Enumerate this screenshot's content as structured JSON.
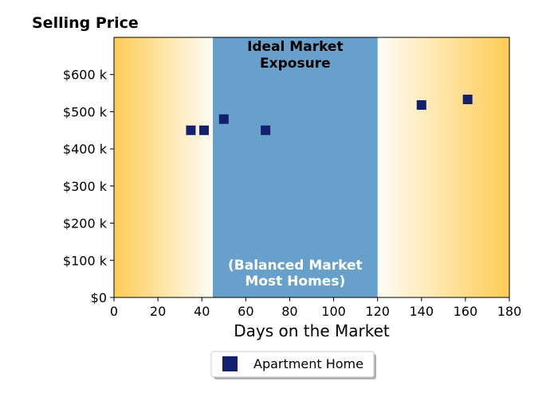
{
  "chart_data": {
    "type": "scatter",
    "title": "Selling Price",
    "xlabel": "Days on the Market",
    "ylabel": "",
    "xlim": [
      0,
      180
    ],
    "ylim": [
      0,
      700000
    ],
    "x_ticks": [
      0,
      20,
      40,
      60,
      80,
      100,
      120,
      140,
      160,
      180
    ],
    "x_tick_labels": [
      "0",
      "20",
      "40",
      "60",
      "80",
      "100",
      "120",
      "140",
      "160",
      "180"
    ],
    "y_ticks": [
      0,
      100000,
      200000,
      300000,
      400000,
      500000,
      600000
    ],
    "y_tick_labels": [
      "$0",
      "$100 k",
      "$200 k",
      "$300 k",
      "$400 k",
      "$500 k",
      "$600 k"
    ],
    "grid": false,
    "legend_position": "bottom-center",
    "background_gradient_color": "#ffcc55",
    "highlight_band": {
      "x_start": 45,
      "x_end": 120,
      "color": "#68a0cc",
      "top_label_line1": "Ideal Market",
      "top_label_line2": "Exposure",
      "bottom_label_line1": "(Balanced Market",
      "bottom_label_line2": "Most Homes)"
    },
    "series": [
      {
        "name": "Apartment Home",
        "color": "#14206e",
        "marker": "square",
        "points": [
          {
            "x": 35,
            "y": 450000
          },
          {
            "x": 41,
            "y": 450000
          },
          {
            "x": 50,
            "y": 480000
          },
          {
            "x": 69,
            "y": 450000
          },
          {
            "x": 140,
            "y": 518000
          },
          {
            "x": 161,
            "y": 533000
          }
        ]
      }
    ]
  }
}
